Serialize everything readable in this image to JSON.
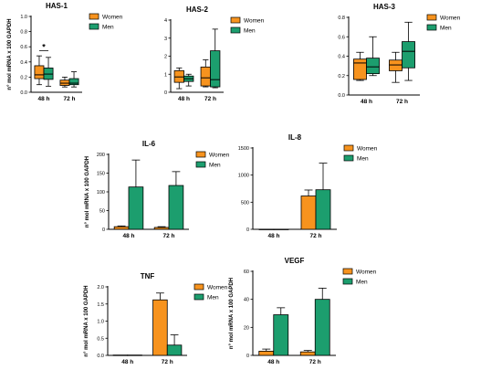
{
  "colors": {
    "women": "#F7931E",
    "men": "#1C9E6E",
    "stroke": "#000000"
  },
  "chart_data": [
    {
      "type": "box",
      "title": "HAS-1",
      "ylabel": "n° mol mRNA x 100 GAPDH",
      "ylim": [
        0,
        1.0
      ],
      "yticks": [
        0.0,
        0.2,
        0.4,
        0.6,
        0.8,
        1.0
      ],
      "ytick_labels": [
        "0.0",
        "0.2",
        "0.4",
        "0.6",
        "0.8",
        "1.0"
      ],
      "categories": [
        "48 h",
        "72 h"
      ],
      "legend": [
        "Women",
        "Men"
      ],
      "annotation": "*",
      "series": [
        {
          "name": "Women",
          "values": [
            {
              "min": 0.1,
              "q1": 0.18,
              "median": 0.23,
              "q3": 0.35,
              "max": 0.48
            },
            {
              "min": 0.07,
              "q1": 0.09,
              "median": 0.12,
              "q3": 0.16,
              "max": 0.2
            }
          ]
        },
        {
          "name": "Men",
          "values": [
            {
              "min": 0.08,
              "q1": 0.17,
              "median": 0.24,
              "q3": 0.32,
              "max": 0.46
            },
            {
              "min": 0.07,
              "q1": 0.1,
              "median": 0.12,
              "q3": 0.18,
              "max": 0.27
            }
          ]
        }
      ]
    },
    {
      "type": "box",
      "title": "HAS-2",
      "ylabel": "",
      "ylim": [
        0,
        4
      ],
      "yticks": [
        0,
        1,
        2,
        3,
        4
      ],
      "ytick_labels": [
        "0",
        "1",
        "2",
        "3",
        "4"
      ],
      "categories": [
        "48 h",
        "72 h"
      ],
      "legend": [
        "Women",
        "Men"
      ],
      "series": [
        {
          "name": "Women",
          "values": [
            {
              "min": 0.2,
              "q1": 0.55,
              "median": 0.85,
              "q3": 1.2,
              "max": 1.35
            },
            {
              "min": 0.3,
              "q1": 0.35,
              "median": 0.8,
              "q3": 1.4,
              "max": 1.8
            }
          ]
        },
        {
          "name": "Men",
          "values": [
            {
              "min": 0.35,
              "q1": 0.6,
              "median": 0.75,
              "q3": 0.9,
              "max": 1.0
            },
            {
              "min": 0.25,
              "q1": 0.3,
              "median": 0.7,
              "q3": 2.3,
              "max": 3.5
            }
          ]
        }
      ]
    },
    {
      "type": "box",
      "title": "HAS-3",
      "ylabel": "",
      "ylim": [
        0,
        0.8
      ],
      "yticks": [
        0.0,
        0.2,
        0.4,
        0.6,
        0.8
      ],
      "ytick_labels": [
        "0.0",
        "0.2",
        "0.4",
        "0.6",
        "0.8"
      ],
      "categories": [
        "48 h",
        "72 h"
      ],
      "legend": [
        "Women",
        "Men"
      ],
      "series": [
        {
          "name": "Women",
          "values": [
            {
              "min": 0.15,
              "q1": 0.16,
              "median": 0.33,
              "q3": 0.37,
              "max": 0.44
            },
            {
              "min": 0.13,
              "q1": 0.25,
              "median": 0.31,
              "q3": 0.36,
              "max": 0.44
            }
          ]
        },
        {
          "name": "Men",
          "values": [
            {
              "min": 0.2,
              "q1": 0.22,
              "median": 0.29,
              "q3": 0.38,
              "max": 0.6
            },
            {
              "min": 0.15,
              "q1": 0.28,
              "median": 0.45,
              "q3": 0.55,
              "max": 0.75
            }
          ]
        }
      ]
    },
    {
      "type": "bar",
      "title": "IL-6",
      "ylabel": "n° mol mRNA x 100 GAPDH",
      "ylim": [
        0,
        200
      ],
      "yticks": [
        0,
        50,
        100,
        150,
        200
      ],
      "ytick_labels": [
        "0",
        "50",
        "100",
        "150",
        "200"
      ],
      "categories": [
        "48 h",
        "72 h"
      ],
      "legend": [
        "Women",
        "Men"
      ],
      "series": [
        {
          "name": "Women",
          "values": [
            7,
            5
          ],
          "errors": [
            2,
            2
          ]
        },
        {
          "name": "Men",
          "values": [
            113,
            117
          ],
          "errors": [
            72,
            37
          ]
        }
      ]
    },
    {
      "type": "bar",
      "title": "IL-8",
      "ylabel": "",
      "ylim": [
        0,
        1500
      ],
      "yticks": [
        0,
        500,
        1000,
        1500
      ],
      "ytick_labels": [
        "0",
        "500",
        "1000",
        "1500"
      ],
      "categories": [
        "48 h",
        "72 h"
      ],
      "legend": [
        "Women",
        "Men"
      ],
      "series": [
        {
          "name": "Women",
          "values": [
            2,
            615
          ],
          "errors": [
            0,
            110
          ]
        },
        {
          "name": "Men",
          "values": [
            2,
            730
          ],
          "errors": [
            0,
            490
          ]
        }
      ]
    },
    {
      "type": "bar",
      "title": "TNF",
      "ylabel": "n° mol mRNA x 100 GAPDH",
      "ylim": [
        0,
        2.0
      ],
      "yticks": [
        0.0,
        0.5,
        1.0,
        1.5,
        2.0
      ],
      "ytick_labels": [
        "0.0",
        "0.5",
        "1.0",
        "1.5",
        "2.0"
      ],
      "categories": [
        "48 h",
        "72 h"
      ],
      "legend": [
        "Women",
        "Men"
      ],
      "series": [
        {
          "name": "Women",
          "values": [
            0.01,
            1.62
          ],
          "errors": [
            0,
            0.2
          ]
        },
        {
          "name": "Men",
          "values": [
            0.01,
            0.3
          ],
          "errors": [
            0,
            0.3
          ]
        }
      ]
    },
    {
      "type": "bar",
      "title": "VEGF",
      "ylabel": "n° mol mRNA x 100 GAPDH",
      "ylim": [
        0,
        60
      ],
      "yticks": [
        0,
        20,
        40,
        60
      ],
      "ytick_labels": [
        "0",
        "20",
        "40",
        "60"
      ],
      "categories": [
        "48 h",
        "72 h"
      ],
      "legend": [
        "Women",
        "Men"
      ],
      "series": [
        {
          "name": "Women",
          "values": [
            3,
            2.5
          ],
          "errors": [
            1.5,
            1
          ]
        },
        {
          "name": "Men",
          "values": [
            29,
            40
          ],
          "errors": [
            5,
            8
          ]
        }
      ]
    }
  ]
}
